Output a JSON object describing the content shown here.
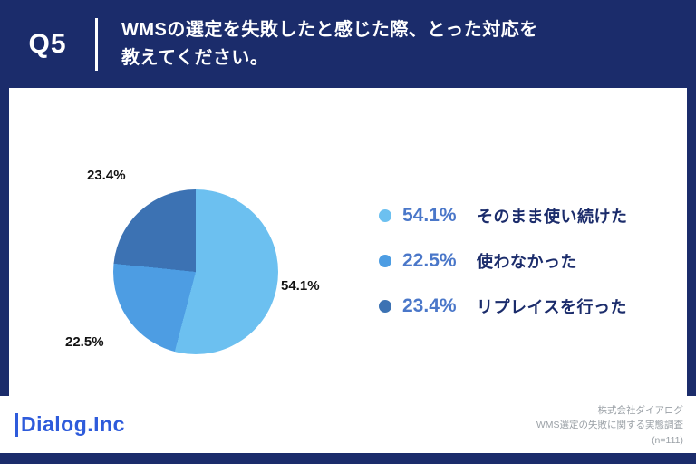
{
  "header": {
    "q_label": "Q5",
    "title_line1": "WMSの選定を失敗したと感じた際、とった対応を",
    "title_line2": "教えてください。"
  },
  "chart_data": {
    "type": "pie",
    "title": "WMSの選定を失敗したと感じた際、とった対応を教えてください。",
    "start_angle_deg": 0,
    "direction": "clockwise",
    "slices": [
      {
        "label": "そのまま使い続けた",
        "value": 54.1,
        "display": "54.1%",
        "color": "#6CC0F0"
      },
      {
        "label": "使わなかった",
        "value": 22.5,
        "display": "22.5%",
        "color": "#4D9DE3"
      },
      {
        "label": "リプレイスを行った",
        "value": 23.4,
        "display": "23.4%",
        "color": "#3C72B3"
      }
    ],
    "legend_position": "right",
    "sample_note": "(n=111)"
  },
  "footer": {
    "logo": "Dialog.Inc",
    "credit_line1": "株式会社ダイアログ",
    "credit_line2": "WMS選定の失敗に関する実態調査",
    "credit_line3": "(n=111)"
  },
  "colors": {
    "navy": "#1B2C6B",
    "legend_percent": "#4A77C9",
    "logo_blue": "#2E5BDB"
  }
}
